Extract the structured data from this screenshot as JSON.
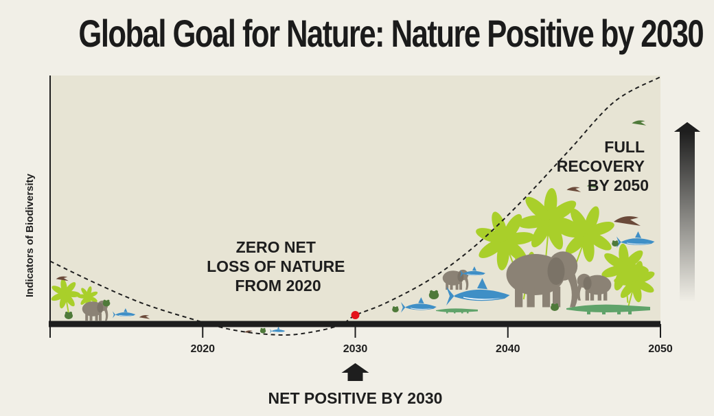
{
  "title": "Global Goal for Nature: Nature Positive by 2030",
  "chart_data": {
    "type": "line",
    "ylabel": "Indicators of Biodiversity",
    "xlabel": "",
    "xlim": [
      2010,
      2050
    ],
    "x_ticks": [
      2010,
      2020,
      2030,
      2040,
      2050
    ],
    "x_tick_labels": [
      "2020",
      "2030",
      "2040",
      "2050"
    ],
    "series": [
      {
        "x": [
          2010,
          2013,
          2016,
          2019,
          2022,
          2025,
          2027,
          2029,
          2030,
          2032,
          2035,
          2038,
          2041,
          2044,
          2047,
          2050
        ],
        "y": [
          0.25,
          0.16,
          0.08,
          0.02,
          -0.03,
          -0.05,
          -0.04,
          -0.01,
          0.03,
          0.08,
          0.18,
          0.32,
          0.5,
          0.7,
          0.9,
          1.0
        ]
      }
    ],
    "marker": {
      "x": 2030,
      "y": 0.03,
      "color": "#e3121b"
    },
    "annotations": {
      "zero_net": [
        "ZERO NET",
        "LOSS OF NATURE",
        "FROM 2020"
      ],
      "full_recovery": [
        "FULL",
        "RECOVERY",
        "BY 2050"
      ],
      "net_positive": "NET POSITIVE BY 2030"
    },
    "grid": false
  },
  "colors": {
    "background": "#f1efe7",
    "plot_fill": "#e7e4d4",
    "axis": "#1e1e1e",
    "foliage": "#a9cf2a",
    "animal_grey": "#8b8275",
    "shark_blue": "#3f8fc6",
    "croc_green": "#5fa36a",
    "marker": "#e3121b"
  },
  "icons": [
    "elephant-icon",
    "shark-icon",
    "palm-leaf-icon",
    "crocodile-icon",
    "bird-icon",
    "frog-icon",
    "up-arrow-icon"
  ]
}
